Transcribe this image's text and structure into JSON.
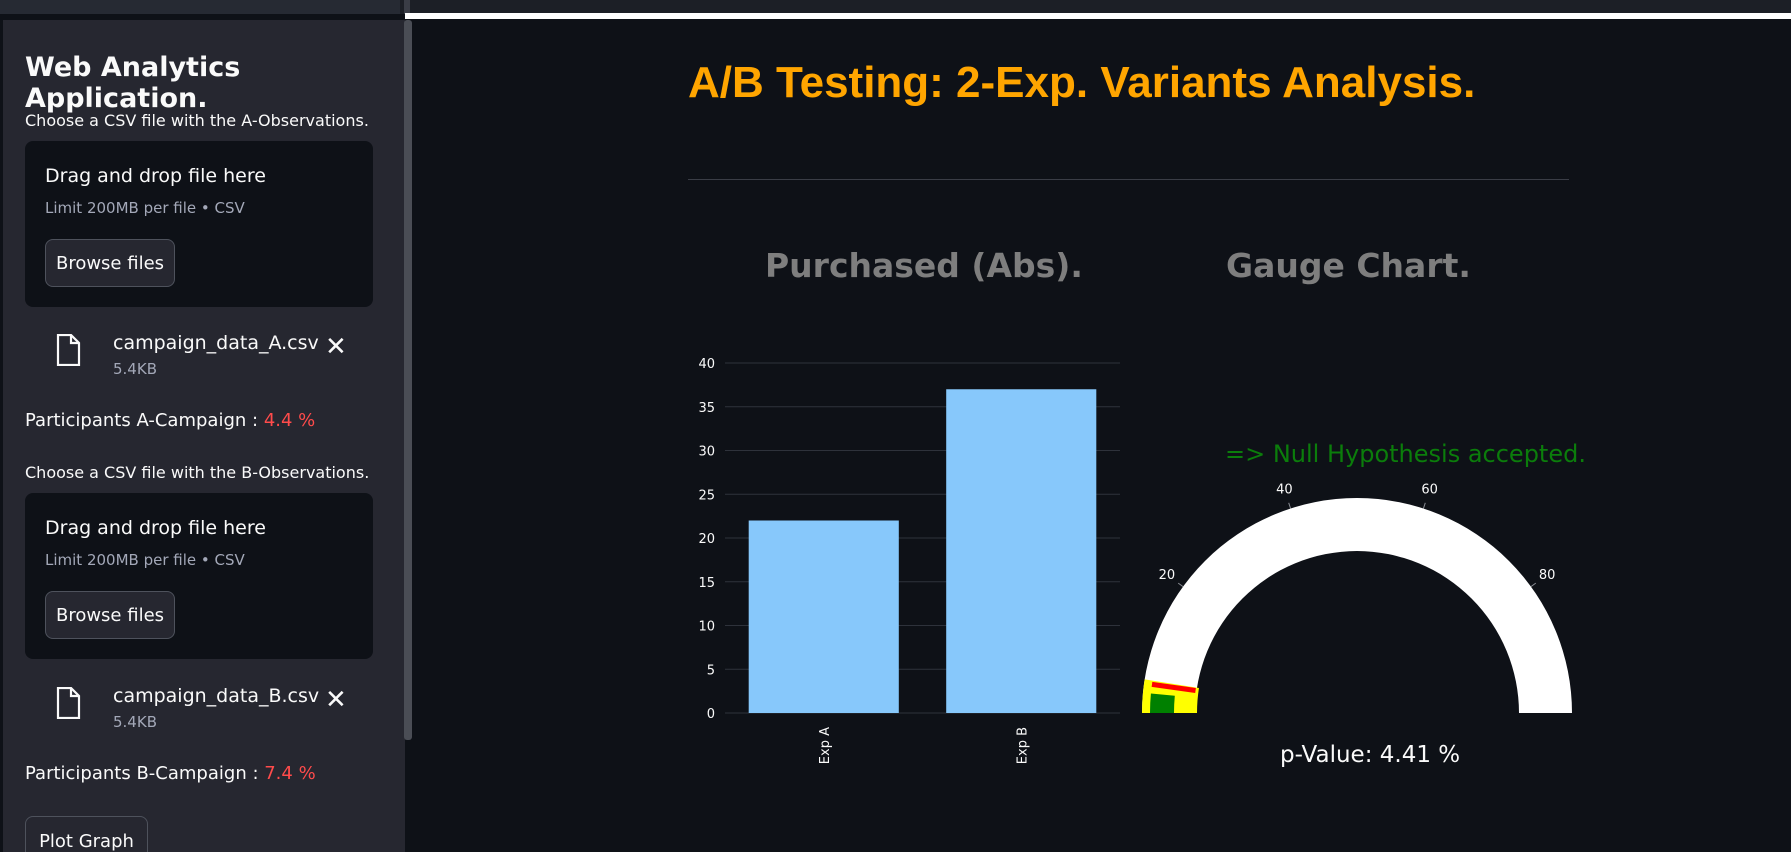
{
  "sidebar": {
    "title": "Web Analytics Application.",
    "upload_a": {
      "label": "Choose a CSV file with the A-Observations.",
      "drop_title": "Drag and drop file here",
      "drop_sub": "Limit 200MB per file • CSV",
      "browse": "Browse files",
      "file_name": "campaign_data_A.csv",
      "file_size": "5.4KB"
    },
    "participants_a": {
      "label": "Participants A-Campaign : ",
      "value": "4.4 %"
    },
    "upload_b": {
      "label": "Choose a CSV file with the B-Observations.",
      "drop_title": "Drag and drop file here",
      "drop_sub": "Limit 200MB per file • CSV",
      "browse": "Browse files",
      "file_name": "campaign_data_B.csv",
      "file_size": "5.4KB"
    },
    "participants_b": {
      "label": "Participants B-Campaign : ",
      "value": "7.4 %"
    },
    "plot_button": "Plot Graph"
  },
  "main": {
    "title": "A/B Testing: 2-Exp. Variants Analysis.",
    "bar_title": "Purchased (Abs).",
    "gauge_title": "Gauge Chart.",
    "hypothesis": "=> Null Hypothesis accepted.",
    "p_value": "p-Value: 4.41 %"
  },
  "chart_data": [
    {
      "type": "bar",
      "title": "Purchased (Abs).",
      "categories": [
        "Exp A",
        "Exp B"
      ],
      "values": [
        22,
        37
      ],
      "ylim": [
        0,
        40
      ],
      "yticks": [
        0,
        5,
        10,
        15,
        20,
        25,
        30,
        35,
        40
      ],
      "grid": true,
      "color": "#87c8fb"
    },
    {
      "type": "gauge",
      "title": "Gauge Chart.",
      "range": [
        0,
        100
      ],
      "ticks": [
        20,
        40,
        60,
        80
      ],
      "value": 4.41,
      "steps": [
        {
          "range": [
            0,
            5
          ],
          "color": "#ffff00"
        },
        {
          "range": [
            0,
            3
          ],
          "color": "#008000"
        }
      ],
      "threshold_color": "#ff0000",
      "bar_color": "#ffffff"
    }
  ]
}
